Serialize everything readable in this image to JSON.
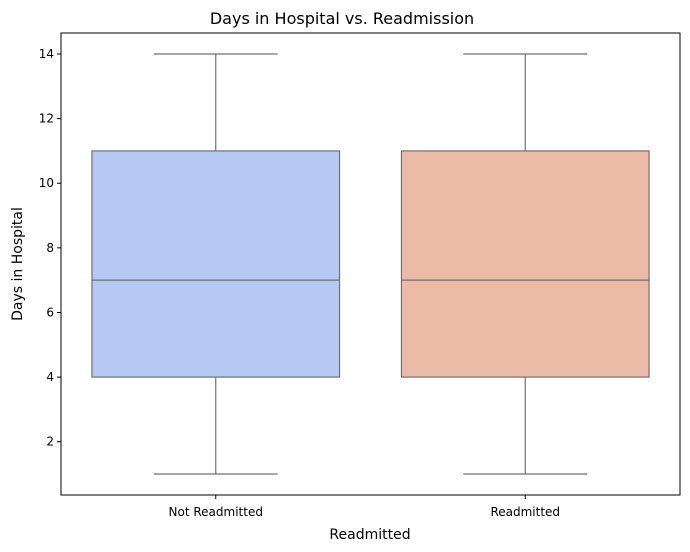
{
  "chart_data": {
    "type": "box",
    "title": "Days in Hospital vs. Readmission",
    "xlabel": "Readmitted",
    "ylabel": "Days in Hospital",
    "categories": [
      "Not Readmitted",
      "Readmitted"
    ],
    "boxes": [
      {
        "category": "Not Readmitted",
        "min": 1,
        "q1": 4,
        "median": 7,
        "q3": 11,
        "max": 14,
        "color": "#b5c9f4"
      },
      {
        "category": "Readmitted",
        "min": 1,
        "q1": 4,
        "median": 7,
        "q3": 11,
        "max": 14,
        "color": "#ecbba6"
      }
    ],
    "ylim": [
      0.35,
      14.65
    ],
    "yticks": [
      2,
      4,
      6,
      8,
      10,
      12,
      14
    ],
    "grid": false,
    "line_color": "#707070"
  }
}
